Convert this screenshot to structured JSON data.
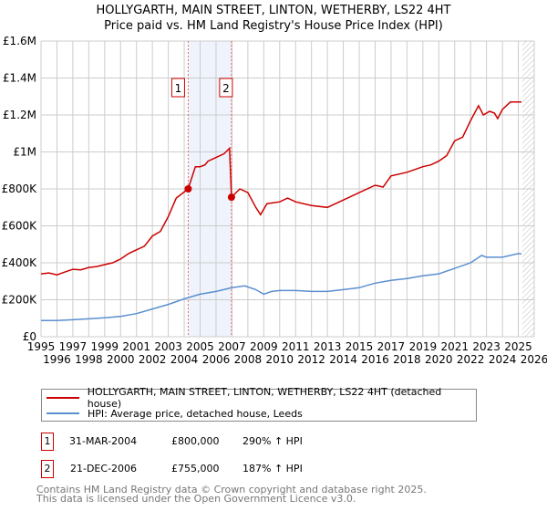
{
  "chart_data": {
    "type": "line",
    "title": "HOLLYGARTH, MAIN STREET, LINTON, WETHERBY, LS22 4HT",
    "subtitle": "Price paid vs. HM Land Registry's House Price Index (HPI)",
    "xlim": [
      1995,
      2026
    ],
    "ylim": [
      0,
      1600000
    ],
    "x_ticks": [
      "1995",
      "1996",
      "1997",
      "1998",
      "1999",
      "2000",
      "2001",
      "2002",
      "2003",
      "2004",
      "2005",
      "2006",
      "2007",
      "2008",
      "2009",
      "2010",
      "2011",
      "2012",
      "2013",
      "2014",
      "2015",
      "2016",
      "2017",
      "2018",
      "2019",
      "2020",
      "2021",
      "2022",
      "2023",
      "2024",
      "2025",
      "2026"
    ],
    "y_ticks": [
      {
        "v": 0,
        "label": "£0"
      },
      {
        "v": 200000,
        "label": "£200K"
      },
      {
        "v": 400000,
        "label": "£400K"
      },
      {
        "v": 600000,
        "label": "£600K"
      },
      {
        "v": 800000,
        "label": "£800K"
      },
      {
        "v": 1000000,
        "label": "£1M"
      },
      {
        "v": 1200000,
        "label": "£1.2M"
      },
      {
        "v": 1400000,
        "label": "£1.4M"
      },
      {
        "v": 1600000,
        "label": "£1.6M"
      }
    ],
    "grid": true,
    "shaded_range": [
      2004.25,
      2006.97
    ],
    "forecast_hatch_from": 2025.25,
    "series": [
      {
        "name": "HOLLYGARTH, MAIN STREET, LINTON, WETHERBY, LS22 4HT (detached house)",
        "color": "#cc0000",
        "x": [
          1995,
          1995.5,
          1996,
          1996.5,
          1997,
          1997.5,
          1998,
          1998.5,
          1999,
          1999.5,
          2000,
          2000.5,
          2001,
          2001.5,
          2002,
          2002.5,
          2003,
          2003.5,
          2004.25,
          2004.7,
          2005,
          2005.3,
          2005.5,
          2006,
          2006.5,
          2006.85,
          2006.97,
          2007.5,
          2008,
          2008.5,
          2008.8,
          2009.2,
          2010,
          2010.5,
          2011,
          2012,
          2013,
          2014,
          2015,
          2016,
          2016.5,
          2017,
          2018,
          2019,
          2019.5,
          2020,
          2020.5,
          2021,
          2021.5,
          2022,
          2022.5,
          2022.8,
          2023.2,
          2023.5,
          2023.7,
          2024,
          2024.5,
          2025.2
        ],
        "y": [
          340000,
          345000,
          335000,
          350000,
          365000,
          362000,
          375000,
          380000,
          390000,
          400000,
          420000,
          450000,
          470000,
          490000,
          545000,
          570000,
          650000,
          750000,
          800000,
          920000,
          920000,
          930000,
          950000,
          970000,
          990000,
          1020000,
          755000,
          800000,
          780000,
          700000,
          660000,
          720000,
          730000,
          750000,
          730000,
          710000,
          700000,
          740000,
          780000,
          820000,
          810000,
          870000,
          890000,
          920000,
          930000,
          950000,
          980000,
          1060000,
          1080000,
          1170000,
          1250000,
          1200000,
          1220000,
          1210000,
          1180000,
          1230000,
          1270000,
          1270000
        ]
      },
      {
        "name": "HPI: Average price, detached house, Leeds",
        "color": "#5b8fd0",
        "x": [
          1995,
          1996,
          1997,
          1998,
          1999,
          2000,
          2001,
          2002,
          2003,
          2004,
          2005,
          2006,
          2007,
          2007.8,
          2008.5,
          2009,
          2009.5,
          2010,
          2011,
          2012,
          2013,
          2014,
          2015,
          2016,
          2017,
          2018,
          2019,
          2020,
          2021,
          2022,
          2022.7,
          2023,
          2024,
          2025,
          2025.2
        ],
        "y": [
          88000,
          88000,
          92000,
          97000,
          102000,
          110000,
          125000,
          150000,
          175000,
          205000,
          230000,
          245000,
          265000,
          275000,
          255000,
          230000,
          245000,
          250000,
          250000,
          245000,
          245000,
          255000,
          265000,
          290000,
          305000,
          315000,
          330000,
          340000,
          370000,
          400000,
          440000,
          430000,
          430000,
          450000,
          448000
        ]
      }
    ],
    "sales": [
      {
        "label": "1",
        "date": "31-MAR-2004",
        "x": 2004.25,
        "price": "£800,000",
        "value": 800000,
        "hpi": "290% ↑ HPI"
      },
      {
        "label": "2",
        "date": "21-DEC-2006",
        "x": 2006.97,
        "price": "£755,000",
        "value": 755000,
        "hpi": "187% ↑ HPI"
      }
    ]
  },
  "footer": [
    "Contains HM Land Registry data © Crown copyright and database right 2025.",
    "This data is licensed under the Open Government Licence v3.0."
  ]
}
